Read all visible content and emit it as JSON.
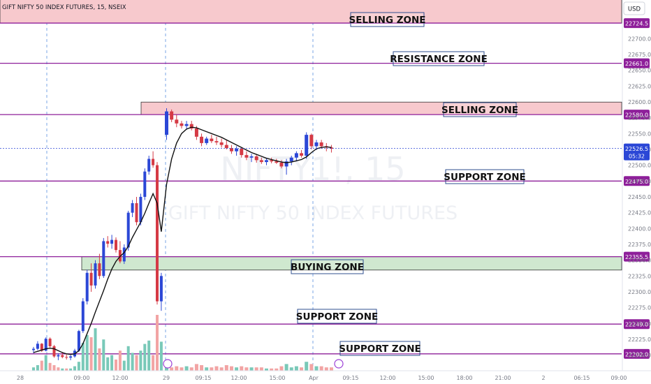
{
  "header": {
    "title": "GIFT NIFTY 50 INDEX FUTURES, 15, NSEIX"
  },
  "currency_button": "USD",
  "watermark": {
    "symbol": "NIFTY1!, 15",
    "name": "GIFT NIFTY 50 INDEX FUTURES"
  },
  "colors": {
    "up": "#2b47d6",
    "down": "#d53a45",
    "ma": "#111111",
    "level": "#8e1f9a",
    "sell_zone": "#f7c9cd",
    "buy_zone": "#cfe8cf",
    "vol_up": "#79c9b8",
    "vol_down": "#f2a4a4",
    "session_line": "#5a8fe0"
  },
  "price_scale": {
    "min": 22180,
    "max": 22750,
    "ticks": [
      "22700.0",
      "22675.0",
      "22650.0",
      "22625.0",
      "22600.0",
      "22575.0",
      "22550.0",
      "22525.0",
      "22500.0",
      "22475.0",
      "22450.0",
      "22425.0",
      "22400.0",
      "22375.0",
      "22350.0",
      "22325.0",
      "22300.0",
      "22275.0",
      "22250.0",
      "22225.0",
      "22200.0"
    ],
    "current_price": "22526.5",
    "countdown": "05:32"
  },
  "time_axis": [
    "28",
    "09:00",
    "12:00",
    "29",
    "09:15",
    "12:00",
    "15:00",
    "Apr",
    "09:15",
    "12:00",
    "15:00",
    "18:00",
    "21:00",
    "2",
    "06:15",
    "09:00"
  ],
  "chart_data": {
    "type": "candlestick",
    "title": "GIFT NIFTY 50 INDEX FUTURES, 15, NSEIX",
    "price_range": [
      22180,
      22750
    ],
    "levels": [
      {
        "price": 22774.3,
        "label": "",
        "axis_label": ""
      },
      {
        "price": 22724.5,
        "label": "SELLING ZONE",
        "axis_label": "22724.5",
        "zone_top": 22774.3
      },
      {
        "price": 22661.0,
        "label": "RESISTANCE ZONE",
        "axis_label": "22661.0"
      },
      {
        "price": 22580.0,
        "label": "SELLING ZONE",
        "axis_label": "22580.0",
        "zone_top": 22599.7
      },
      {
        "price": 22475.0,
        "label": "SUPPORT ZONE",
        "axis_label": "22475.0"
      },
      {
        "price": 22355.5,
        "label": "BUYING ZONE",
        "axis_label": "22355.5",
        "zone_bottom": 22334.4
      },
      {
        "price": 22249.0,
        "label": "SUPPORT ZONE",
        "axis_label": "22249.0"
      },
      {
        "price": 22202.0,
        "label": "SUPPORT ZONE",
        "axis_label": "22202.0"
      }
    ],
    "candles": [
      [
        22208,
        22213,
        22203,
        22210
      ],
      [
        22210,
        22222,
        22208,
        22218
      ],
      [
        22218,
        22219,
        22205,
        22207
      ],
      [
        22207,
        22228,
        22206,
        22226
      ],
      [
        22226,
        22228,
        22212,
        22214
      ],
      [
        22214,
        22216,
        22196,
        22198
      ],
      [
        22198,
        22203,
        22192,
        22200
      ],
      [
        22200,
        22205,
        22195,
        22197
      ],
      [
        22197,
        22201,
        22193,
        22196
      ],
      [
        22196,
        22200,
        22192,
        22198
      ],
      [
        22198,
        22210,
        22196,
        22207
      ],
      [
        22207,
        22240,
        22205,
        22238
      ],
      [
        22238,
        22290,
        22235,
        22285
      ],
      [
        22285,
        22335,
        22280,
        22330
      ],
      [
        22330,
        22345,
        22300,
        22310
      ],
      [
        22310,
        22350,
        22305,
        22345
      ],
      [
        22345,
        22360,
        22320,
        22325
      ],
      [
        22325,
        22385,
        22322,
        22380
      ],
      [
        22380,
        22388,
        22370,
        22376
      ],
      [
        22376,
        22390,
        22368,
        22382
      ],
      [
        22382,
        22386,
        22362,
        22366
      ],
      [
        22366,
        22380,
        22345,
        22348
      ],
      [
        22348,
        22375,
        22344,
        22370
      ],
      [
        22370,
        22428,
        22365,
        22425
      ],
      [
        22425,
        22445,
        22418,
        22440
      ],
      [
        22440,
        22450,
        22405,
        22410
      ],
      [
        22410,
        22455,
        22405,
        22450
      ],
      [
        22450,
        22495,
        22445,
        22490
      ],
      [
        22490,
        22515,
        22485,
        22510
      ],
      [
        22510,
        22522,
        22496,
        22500
      ],
      [
        22500,
        22505,
        22280,
        22285
      ],
      [
        22285,
        22330,
        22270,
        22325
      ],
      [
        22548,
        22590,
        22540,
        22585
      ],
      [
        22585,
        22588,
        22568,
        22572
      ],
      [
        22572,
        22580,
        22560,
        22566
      ],
      [
        22566,
        22570,
        22558,
        22562
      ],
      [
        22562,
        22570,
        22556,
        22565
      ],
      [
        22565,
        22570,
        22555,
        22558
      ],
      [
        22558,
        22562,
        22540,
        22545
      ],
      [
        22545,
        22550,
        22530,
        22535
      ],
      [
        22535,
        22545,
        22532,
        22542
      ],
      [
        22542,
        22548,
        22535,
        22538
      ],
      [
        22538,
        22545,
        22532,
        22536
      ],
      [
        22536,
        22542,
        22528,
        22532
      ],
      [
        22532,
        22540,
        22525,
        22527
      ],
      [
        22527,
        22532,
        22518,
        22522
      ],
      [
        22522,
        22530,
        22515,
        22526
      ],
      [
        22526,
        22528,
        22512,
        22516
      ],
      [
        22516,
        22522,
        22508,
        22512
      ],
      [
        22512,
        22518,
        22505,
        22514
      ],
      [
        22514,
        22516,
        22504,
        22508
      ],
      [
        22508,
        22512,
        22502,
        22505
      ],
      [
        22505,
        22510,
        22500,
        22508
      ],
      [
        22508,
        22512,
        22503,
        22506
      ],
      [
        22506,
        22510,
        22502,
        22504
      ],
      [
        22504,
        22508,
        22495,
        22498
      ],
      [
        22498,
        22510,
        22485,
        22506
      ],
      [
        22506,
        22515,
        22500,
        22512
      ],
      [
        22512,
        22522,
        22506,
        22519
      ],
      [
        22519,
        22524,
        22512,
        22515
      ],
      [
        22515,
        22552,
        22510,
        22548
      ],
      [
        22548,
        22550,
        22525,
        22530
      ],
      [
        22530,
        22540,
        22524,
        22536
      ],
      [
        22536,
        22540,
        22526,
        22530
      ],
      [
        22530,
        22535,
        22522,
        22528
      ],
      [
        22528,
        22532,
        22520,
        22526
      ]
    ],
    "moving_average": [
      22204,
      22206,
      22208,
      22210,
      22211,
      22210,
      22207,
      22204,
      22202,
      22201,
      22202,
      22207,
      22218,
      22234,
      22250,
      22268,
      22285,
      22302,
      22320,
      22336,
      22348,
      22356,
      22362,
      22372,
      22386,
      22398,
      22410,
      22424,
      22440,
      22455,
      22440,
      22395,
      22470,
      22510,
      22535,
      22550,
      22557,
      22560,
      22559,
      22556,
      22553,
      22550,
      22547,
      22544,
      22540,
      22536,
      22532,
      22528,
      22524,
      22520,
      22517,
      22514,
      22511,
      22509,
      22507,
      22505,
      22504,
      22505,
      22507,
      22509,
      22513,
      22520,
      22526,
      22528,
      22529,
      22528
    ],
    "volume": [
      [
        3,
        1
      ],
      [
        5,
        1
      ],
      [
        9,
        0
      ],
      [
        14,
        1
      ],
      [
        7,
        0
      ],
      [
        5,
        0
      ],
      [
        3,
        0
      ],
      [
        2,
        1
      ],
      [
        2,
        0
      ],
      [
        2,
        1
      ],
      [
        4,
        1
      ],
      [
        8,
        1
      ],
      [
        25,
        1
      ],
      [
        32,
        1
      ],
      [
        30,
        0
      ],
      [
        38,
        1
      ],
      [
        20,
        0
      ],
      [
        28,
        1
      ],
      [
        12,
        1
      ],
      [
        14,
        1
      ],
      [
        10,
        0
      ],
      [
        18,
        0
      ],
      [
        9,
        1
      ],
      [
        22,
        1
      ],
      [
        16,
        1
      ],
      [
        14,
        0
      ],
      [
        18,
        1
      ],
      [
        24,
        1
      ],
      [
        27,
        1
      ],
      [
        14,
        0
      ],
      [
        50,
        0
      ],
      [
        26,
        1
      ],
      [
        6,
        1
      ],
      [
        3,
        0
      ],
      [
        4,
        0
      ],
      [
        3,
        0
      ],
      [
        4,
        1
      ],
      [
        3,
        0
      ],
      [
        6,
        0
      ],
      [
        5,
        0
      ],
      [
        3,
        1
      ],
      [
        3,
        0
      ],
      [
        4,
        0
      ],
      [
        3,
        0
      ],
      [
        5,
        0
      ],
      [
        4,
        0
      ],
      [
        3,
        1
      ],
      [
        4,
        0
      ],
      [
        3,
        0
      ],
      [
        3,
        1
      ],
      [
        3,
        0
      ],
      [
        3,
        0
      ],
      [
        2,
        1
      ],
      [
        2,
        0
      ],
      [
        2,
        0
      ],
      [
        4,
        0
      ],
      [
        6,
        1
      ],
      [
        3,
        1
      ],
      [
        4,
        1
      ],
      [
        3,
        0
      ],
      [
        8,
        1
      ],
      [
        6,
        0
      ],
      [
        4,
        1
      ],
      [
        4,
        0
      ],
      [
        3,
        0
      ],
      [
        3,
        0
      ]
    ]
  }
}
